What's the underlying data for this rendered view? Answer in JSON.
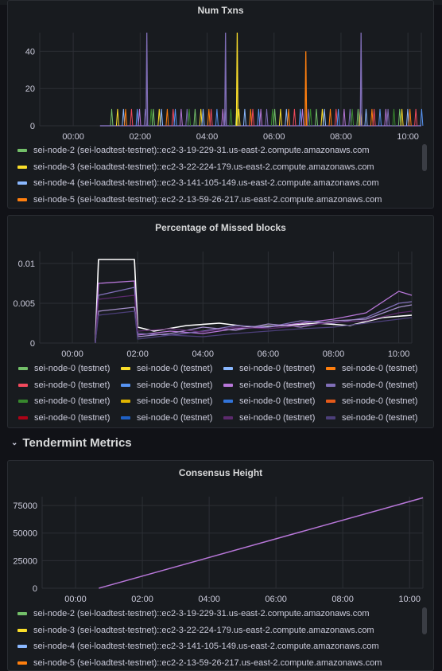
{
  "colors": {
    "green": "#73bf69",
    "yellow": "#fade2a",
    "blue": "#8ab8ff",
    "orange": "#ff7f0e",
    "red": "#f2495c",
    "mid_blue": "#5794f2",
    "purple": "#b877d9",
    "violet": "#806eb7",
    "dark_green": "#37872d",
    "dark_yellow": "#e0b400",
    "steel_blue": "#3274d9",
    "dark_orange": "#e55a1a",
    "dark_red": "#ad0317",
    "navy": "#1f60c4",
    "plum": "#5c2a6d",
    "indigo": "#4c3f7a",
    "lavender": "#a38ec9",
    "white": "#ffffff"
  },
  "panels": {
    "txns": {
      "title": "Num Txns",
      "legend": [
        {
          "label": "sei-node-2 (sei-loadtest-testnet)::ec2-3-19-229-31.us-east-2.compute.amazonaws.com",
          "color": "#73bf69"
        },
        {
          "label": "sei-node-3 (sei-loadtest-testnet)::ec2-3-22-224-179.us-east-2.compute.amazonaws.com",
          "color": "#fade2a"
        },
        {
          "label": "sei-node-4 (sei-loadtest-testnet)::ec2-3-141-105-149.us-east-2.compute.amazonaws.com",
          "color": "#8ab8ff"
        },
        {
          "label": "sei-node-5 (sei-loadtest-testnet)::ec2-2-13-59-26-217.us-east-2.compute.amazonaws.com",
          "color": "#ff7f0e"
        }
      ]
    },
    "missed": {
      "title": "Percentage of Missed blocks",
      "legend": [
        {
          "label": "sei-node-0 (testnet)",
          "color": "#73bf69"
        },
        {
          "label": "sei-node-0 (testnet)",
          "color": "#fade2a"
        },
        {
          "label": "sei-node-0 (testnet)",
          "color": "#8ab8ff"
        },
        {
          "label": "sei-node-0 (testnet)",
          "color": "#ff7f0e"
        },
        {
          "label": "sei-node-0 (testnet)",
          "color": "#f2495c"
        },
        {
          "label": "sei-node-0 (testnet)",
          "color": "#5794f2"
        },
        {
          "label": "sei-node-0 (testnet)",
          "color": "#b877d9"
        },
        {
          "label": "sei-node-0 (testnet)",
          "color": "#806eb7"
        },
        {
          "label": "sei-node-0 (testnet)",
          "color": "#37872d"
        },
        {
          "label": "sei-node-0 (testnet)",
          "color": "#e0b400"
        },
        {
          "label": "sei-node-0 (testnet)",
          "color": "#3274d9"
        },
        {
          "label": "sei-node-0 (testnet)",
          "color": "#e55a1a"
        },
        {
          "label": "sei-node-0 (testnet)",
          "color": "#ad0317"
        },
        {
          "label": "sei-node-0 (testnet)",
          "color": "#1f60c4"
        },
        {
          "label": "sei-node-0 (testnet)",
          "color": "#5c2a6d"
        },
        {
          "label": "sei-node-0 (testnet)",
          "color": "#4c3f7a"
        }
      ]
    },
    "row_title": "Tendermint Metrics",
    "height": {
      "title": "Consensus Height",
      "legend": [
        {
          "label": "sei-node-2 (sei-loadtest-testnet)::ec2-3-19-229-31.us-east-2.compute.amazonaws.com",
          "color": "#73bf69"
        },
        {
          "label": "sei-node-3 (sei-loadtest-testnet)::ec2-3-22-224-179.us-east-2.compute.amazonaws.com",
          "color": "#fade2a"
        },
        {
          "label": "sei-node-4 (sei-loadtest-testnet)::ec2-3-141-105-149.us-east-2.compute.amazonaws.com",
          "color": "#8ab8ff"
        },
        {
          "label": "sei-node-5 (sei-loadtest-testnet)::ec2-2-13-59-26-217.us-east-2.compute.amazonaws.com",
          "color": "#ff7f0e"
        }
      ]
    }
  },
  "chart_data": [
    {
      "type": "line",
      "title": "Num Txns",
      "x_ticks": [
        "00:00",
        "02:00",
        "04:00",
        "06:00",
        "08:00",
        "10:00"
      ],
      "y_ticks": [
        0,
        20,
        40
      ],
      "ylim": [
        0,
        50
      ],
      "xlim_hours": [
        -1.0,
        10.4
      ],
      "baseline_hours": [
        0.8,
        10.4
      ],
      "spike_series": [
        {
          "name": "",
          "color": "#806eb7",
          "points": [
            [
              2.2,
              50
            ],
            [
              4.55,
              50
            ],
            [
              8.6,
              50
            ]
          ]
        },
        {
          "name": "",
          "color": "#fade2a",
          "points": [
            [
              4.9,
              50
            ]
          ]
        },
        {
          "name": "",
          "color": "#ff7f0e",
          "points": [
            [
              6.95,
              40
            ]
          ]
        }
      ],
      "small_spikes_value": 9
    },
    {
      "type": "line",
      "title": "Percentage of Missed blocks",
      "x_ticks": [
        "00:00",
        "02:00",
        "04:00",
        "06:00",
        "08:00",
        "10:00"
      ],
      "y_ticks": [
        0,
        0.005,
        0.01
      ],
      "ylim": [
        0,
        0.0115
      ],
      "xlim_hours": [
        -1.0,
        10.4
      ],
      "series": [
        {
          "name": "",
          "color": "#ffffff",
          "points": [
            [
              0.7,
              0
            ],
            [
              0.8,
              0.0105
            ],
            [
              1.9,
              0.0105
            ],
            [
              2.0,
              0.002
            ],
            [
              2.5,
              0.0015
            ],
            [
              3.5,
              0.0022
            ],
            [
              4.5,
              0.0025
            ],
            [
              5.5,
              0.002
            ],
            [
              6.5,
              0.0022
            ],
            [
              7.5,
              0.0025
            ],
            [
              8.5,
              0.0022
            ],
            [
              9.5,
              0.0032
            ],
            [
              10.4,
              0.0035
            ]
          ]
        },
        {
          "name": "",
          "color": "#b877d9",
          "points": [
            [
              0.7,
              0
            ],
            [
              0.8,
              0.0075
            ],
            [
              1.9,
              0.0078
            ],
            [
              2.0,
              0.001
            ],
            [
              3.0,
              0.0015
            ],
            [
              4.0,
              0.0012
            ],
            [
              5.0,
              0.0018
            ],
            [
              6.0,
              0.002
            ],
            [
              7.0,
              0.0025
            ],
            [
              8.0,
              0.003
            ],
            [
              9.0,
              0.0038
            ],
            [
              10.0,
              0.0065
            ],
            [
              10.4,
              0.006
            ]
          ]
        },
        {
          "name": "",
          "color": "#806eb7",
          "points": [
            [
              0.7,
              0
            ],
            [
              0.8,
              0.006
            ],
            [
              1.9,
              0.007
            ],
            [
              2.0,
              0.0012
            ],
            [
              3.0,
              0.001
            ],
            [
              4.0,
              0.0015
            ],
            [
              5.0,
              0.0022
            ],
            [
              6.0,
              0.002
            ],
            [
              7.0,
              0.0028
            ],
            [
              8.0,
              0.0025
            ],
            [
              9.0,
              0.0032
            ],
            [
              10.0,
              0.005
            ],
            [
              10.4,
              0.0052
            ]
          ]
        },
        {
          "name": "",
          "color": "#a38ec9",
          "points": [
            [
              0.7,
              0
            ],
            [
              0.8,
              0.004
            ],
            [
              1.9,
              0.0045
            ],
            [
              2.0,
              0.0008
            ],
            [
              3.0,
              0.0012
            ],
            [
              4.0,
              0.002
            ],
            [
              5.0,
              0.0016
            ],
            [
              6.0,
              0.0024
            ],
            [
              7.0,
              0.002
            ],
            [
              8.0,
              0.0028
            ],
            [
              9.0,
              0.003
            ],
            [
              10.0,
              0.0045
            ],
            [
              10.4,
              0.0048
            ]
          ]
        },
        {
          "name": "",
          "color": "#5c2a6d",
          "points": [
            [
              0.7,
              0
            ],
            [
              0.8,
              0.0055
            ],
            [
              1.9,
              0.006
            ],
            [
              2.0,
              0.0015
            ],
            [
              3.0,
              0.0018
            ],
            [
              4.0,
              0.0014
            ],
            [
              5.0,
              0.002
            ],
            [
              6.0,
              0.0018
            ],
            [
              7.0,
              0.0022
            ],
            [
              8.0,
              0.0026
            ],
            [
              9.0,
              0.0028
            ],
            [
              10.0,
              0.0038
            ],
            [
              10.4,
              0.004
            ]
          ]
        },
        {
          "name": "",
          "color": "#4c3f7a",
          "points": [
            [
              0.7,
              0
            ],
            [
              0.8,
              0.0035
            ],
            [
              1.9,
              0.004
            ],
            [
              2.0,
              0.0005
            ],
            [
              3.0,
              0.001
            ],
            [
              4.0,
              0.0008
            ],
            [
              5.0,
              0.0012
            ],
            [
              6.0,
              0.0015
            ],
            [
              7.0,
              0.0018
            ],
            [
              8.0,
              0.002
            ],
            [
              9.0,
              0.0025
            ],
            [
              10.0,
              0.003
            ],
            [
              10.4,
              0.0032
            ]
          ]
        }
      ]
    },
    {
      "type": "line",
      "title": "Consensus Height",
      "x_ticks": [
        "00:00",
        "02:00",
        "04:00",
        "06:00",
        "08:00",
        "10:00"
      ],
      "y_ticks": [
        0,
        25000,
        50000,
        75000
      ],
      "ylim": [
        0,
        83000
      ],
      "xlim_hours": [
        -1.0,
        10.4
      ],
      "series": [
        {
          "name": "",
          "color": "#b877d9",
          "points": [
            [
              0.7,
              0
            ],
            [
              10.4,
              82000
            ]
          ]
        }
      ]
    }
  ]
}
